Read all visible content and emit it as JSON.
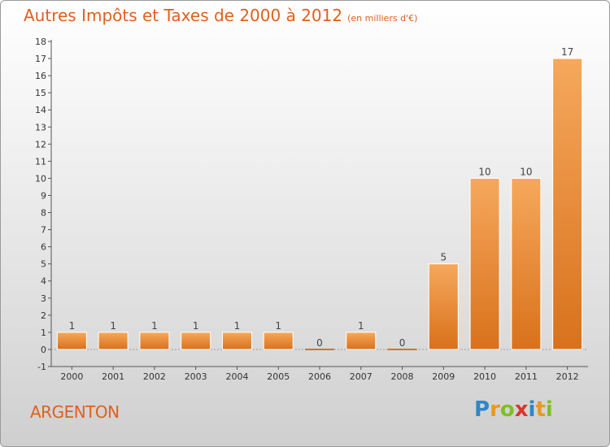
{
  "title": "Autres Impôts et Taxes de 2000 à 2012",
  "subtitle": "(en milliers d'€)",
  "place": "ARGENTON",
  "logo": {
    "letters": [
      "P",
      "r",
      "o",
      "x",
      "i",
      "t",
      "i"
    ],
    "colors": [
      "#2f86c8",
      "#e89a1e",
      "#7fbf2a",
      "#d9362b",
      "#2f86c8",
      "#e89a1e",
      "#7fbf2a"
    ]
  },
  "colors": {
    "accent": "#e0601e",
    "bar_top": "#f6a85c",
    "bar_bottom": "#d8711c"
  },
  "chart_data": {
    "type": "bar",
    "title": "Autres Impôts et Taxes de 2000 à 2012",
    "subtitle": "(en milliers d'€)",
    "categories": [
      "2000",
      "2001",
      "2002",
      "2003",
      "2004",
      "2005",
      "2006",
      "2007",
      "2008",
      "2009",
      "2010",
      "2011",
      "2012"
    ],
    "values": [
      1,
      1,
      1,
      1,
      1,
      1,
      0,
      1,
      0,
      5,
      10,
      10,
      17
    ],
    "data_labels": [
      "1",
      "1",
      "1",
      "1",
      "1",
      "1",
      "0",
      "1",
      "0",
      "5",
      "10",
      "10",
      "17"
    ],
    "yticks": [
      -1,
      0,
      1,
      2,
      3,
      4,
      5,
      6,
      7,
      8,
      9,
      10,
      11,
      12,
      13,
      14,
      15,
      16,
      17,
      18
    ],
    "ylim": [
      -1,
      18
    ],
    "xlabel": "",
    "ylabel": "",
    "grid": false,
    "legend": "none"
  }
}
